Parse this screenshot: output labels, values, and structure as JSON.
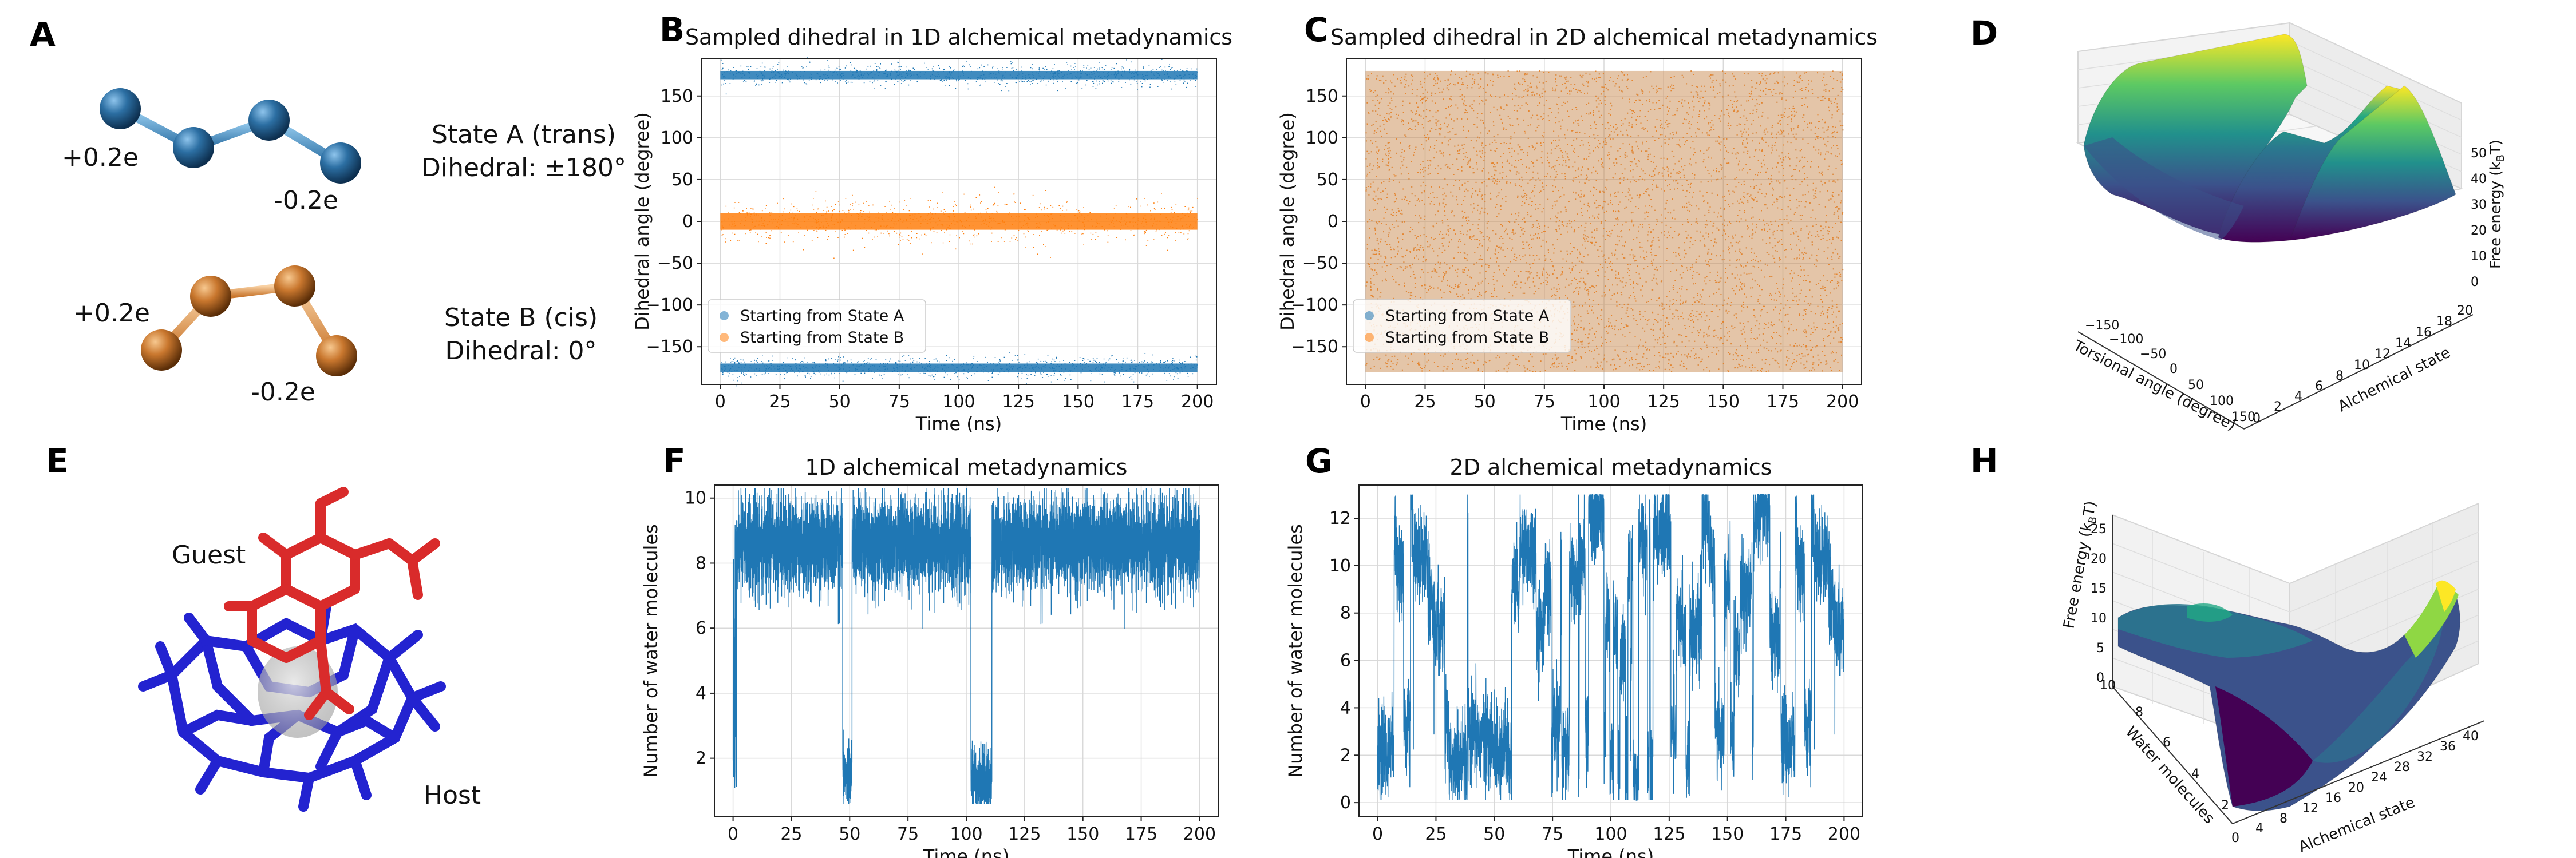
{
  "panels": {
    "A": {
      "label": "A",
      "stateA": {
        "line1": "State A (trans)",
        "line2": "Dihedral: ±180°",
        "charge_left": "+0.2e",
        "charge_right": "-0.2e",
        "color": "#2c6fa3"
      },
      "stateB": {
        "line1": "State B (cis)",
        "line2": "Dihedral: 0°",
        "charge_left": "+0.2e",
        "charge_right": "-0.2e",
        "color": "#c9772e"
      }
    },
    "E": {
      "label": "E",
      "guest": "Guest",
      "host": "Host",
      "guest_color": "#d92b2b",
      "host_color": "#2323d0"
    },
    "D": {
      "label": "D",
      "xlabel": "Torsional angle (degree)",
      "ylabel": "Alchemical state",
      "zlabel": "Free energy (k",
      "zlabel_sub": "B",
      "zlabel_end": "T)",
      "xticks": [
        "−150",
        "−100",
        "−50",
        "0",
        "50",
        "100",
        "150"
      ],
      "yticks": [
        "0",
        "2",
        "4",
        "6",
        "8",
        "10",
        "12",
        "14",
        "16",
        "18",
        "20"
      ],
      "zticks": [
        "0",
        "10",
        "20",
        "30",
        "40",
        "50"
      ]
    },
    "H": {
      "label": "H",
      "xlabel": "Alchemical state",
      "ylabel": "Water molecules",
      "zlabel": "Free energy (k",
      "zlabel_sub": "B",
      "zlabel_end": "T)",
      "xticks": [
        "0",
        "4",
        "8",
        "12",
        "16",
        "20",
        "24",
        "28",
        "32",
        "36",
        "40"
      ],
      "yticks": [
        "2",
        "4",
        "6",
        "8",
        "10"
      ],
      "zticks": [
        "0",
        "5",
        "10",
        "15",
        "20",
        "25"
      ]
    }
  },
  "chart_data": [
    {
      "panel": "B",
      "type": "scatter",
      "title": "Sampled dihedral in 1D alchemical metadynamics",
      "xlabel": "Time (ns)",
      "ylabel": "Dihedral angle (degree)",
      "xlim": [
        -8,
        208
      ],
      "ylim": [
        -195,
        195
      ],
      "xticks": [
        0,
        25,
        50,
        75,
        100,
        125,
        150,
        175,
        200
      ],
      "yticks": [
        -150,
        -100,
        -50,
        0,
        50,
        100,
        150
      ],
      "grid": true,
      "legend_position": "lower-left",
      "series": [
        {
          "name": "Starting from State A",
          "color": "#1f77b4",
          "bands": [
            {
              "center": 175,
              "halfwidth": 5
            },
            {
              "center": -175,
              "halfwidth": 5
            }
          ],
          "x_range": [
            0,
            200
          ]
        },
        {
          "name": "Starting from State B",
          "color": "#ff7f0e",
          "bands": [
            {
              "center": 0,
              "halfwidth": 10
            }
          ],
          "x_range": [
            0,
            200
          ]
        }
      ]
    },
    {
      "panel": "C",
      "type": "scatter",
      "title": "Sampled dihedral in 2D alchemical metadynamics",
      "xlabel": "Time (ns)",
      "ylabel": "Dihedral angle (degree)",
      "xlim": [
        -8,
        208
      ],
      "ylim": [
        -195,
        195
      ],
      "xticks": [
        0,
        25,
        50,
        75,
        100,
        125,
        150,
        175,
        200
      ],
      "yticks": [
        -150,
        -100,
        -50,
        0,
        50,
        100,
        150
      ],
      "grid": true,
      "legend_position": "lower-left",
      "series": [
        {
          "name": "Starting from State A",
          "color": "#1f77b4",
          "distribution": "uniform",
          "y_range": [
            -180,
            180
          ],
          "x_range": [
            0,
            200
          ]
        },
        {
          "name": "Starting from State B",
          "color": "#ff7f0e",
          "distribution": "uniform",
          "y_range": [
            -180,
            180
          ],
          "x_range": [
            0,
            200
          ]
        }
      ]
    },
    {
      "panel": "F",
      "type": "line",
      "title": "1D alchemical metadynamics",
      "xlabel": "Time (ns)",
      "ylabel": "Number of water molecules",
      "xlim": [
        -8,
        208
      ],
      "ylim": [
        0.2,
        10.4
      ],
      "xticks": [
        0,
        25,
        50,
        75,
        100,
        125,
        150,
        175,
        200
      ],
      "yticks": [
        2,
        4,
        6,
        8,
        10
      ],
      "grid": true,
      "color": "#1f77b4",
      "segments": [
        {
          "t": [
            0,
            1.5
          ],
          "level": "transition"
        },
        {
          "t": [
            1.5,
            47
          ],
          "mean": 8.6,
          "spread": 1.2
        },
        {
          "t": [
            47,
            51
          ],
          "mean": 1.5,
          "spread": 0.8
        },
        {
          "t": [
            51,
            102
          ],
          "mean": 8.6,
          "spread": 1.2
        },
        {
          "t": [
            102,
            111
          ],
          "mean": 1.3,
          "spread": 0.8
        },
        {
          "t": [
            111,
            200
          ],
          "mean": 8.6,
          "spread": 1.2
        }
      ]
    },
    {
      "panel": "G",
      "type": "line",
      "title": "2D alchemical metadynamics",
      "xlabel": "Time (ns)",
      "ylabel": "Number of water molecules",
      "xlim": [
        -8,
        208
      ],
      "ylim": [
        -0.6,
        13.4
      ],
      "xticks": [
        0,
        25,
        50,
        75,
        100,
        125,
        150,
        175,
        200
      ],
      "yticks": [
        0,
        2,
        4,
        6,
        8,
        10,
        12
      ],
      "grid": true,
      "color": "#1f77b4",
      "range": [
        0,
        13
      ],
      "behaviour": "frequent transitions between 0 and 12"
    }
  ]
}
